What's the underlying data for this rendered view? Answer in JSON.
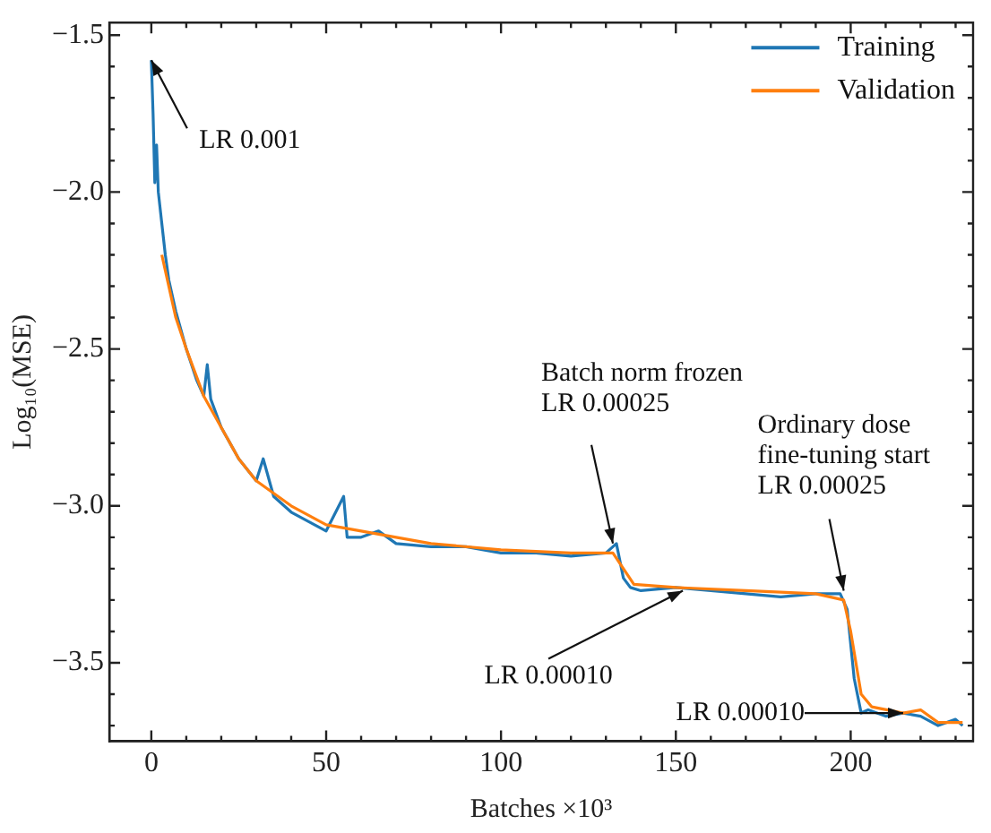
{
  "chart_data": {
    "type": "line",
    "xlabel": "Batches ×10³",
    "ylabel": "Log₁₀(MSE)",
    "xlim": [
      -12,
      235
    ],
    "ylim": [
      -3.75,
      -1.46
    ],
    "xticks": [
      0,
      {
        "value": 10,
        "label": null
      },
      {
        "value": 20,
        "label": null
      },
      {
        "value": 30,
        "label": null
      },
      {
        "value": 40,
        "label": null
      },
      50,
      {
        "value": 60,
        "label": null
      },
      {
        "value": 70,
        "label": null
      },
      {
        "value": 80,
        "label": null
      },
      {
        "value": 90,
        "label": null
      },
      100,
      {
        "value": 110,
        "label": null
      },
      {
        "value": 120,
        "label": null
      },
      {
        "value": 130,
        "label": null
      },
      {
        "value": 140,
        "label": null
      },
      150,
      {
        "value": 160,
        "label": null
      },
      {
        "value": 170,
        "label": null
      },
      {
        "value": 180,
        "label": null
      },
      {
        "value": 190,
        "label": null
      },
      200,
      {
        "value": 210,
        "label": null
      },
      {
        "value": 220,
        "label": null
      },
      {
        "value": 230,
        "label": null
      }
    ],
    "yticks": [
      {
        "value": -3.7,
        "label": null
      },
      {
        "value": -3.6,
        "label": null
      },
      {
        "value": -3.5,
        "label": "−3.5"
      },
      {
        "value": -3.4,
        "label": null
      },
      {
        "value": -3.3,
        "label": null
      },
      {
        "value": -3.2,
        "label": null
      },
      {
        "value": -3.1,
        "label": null
      },
      {
        "value": -3.0,
        "label": "−3.0"
      },
      {
        "value": -2.9,
        "label": null
      },
      {
        "value": -2.8,
        "label": null
      },
      {
        "value": -2.7,
        "label": null
      },
      {
        "value": -2.6,
        "label": null
      },
      {
        "value": -2.5,
        "label": "−2.5"
      },
      {
        "value": -2.4,
        "label": null
      },
      {
        "value": -2.3,
        "label": null
      },
      {
        "value": -2.2,
        "label": null
      },
      {
        "value": -2.1,
        "label": null
      },
      {
        "value": -2.0,
        "label": "−2.0"
      },
      {
        "value": -1.9,
        "label": null
      },
      {
        "value": -1.8,
        "label": null
      },
      {
        "value": -1.7,
        "label": null
      },
      {
        "value": -1.6,
        "label": null
      },
      {
        "value": -1.5,
        "label": "−1.5"
      }
    ],
    "grid": false,
    "legend": "top right",
    "marker": "none",
    "line_style": "solid",
    "series": [
      {
        "name": "Training",
        "color": "#1f77b4",
        "x": [
          0,
          0.5,
          1,
          1.5,
          2,
          3,
          4,
          5,
          7,
          10,
          13,
          15,
          16,
          17,
          20,
          25,
          30,
          32,
          35,
          40,
          45,
          50,
          55,
          56,
          60,
          65,
          70,
          80,
          90,
          100,
          110,
          120,
          130,
          133,
          135,
          137,
          140,
          150,
          160,
          170,
          180,
          190,
          197,
          199,
          201,
          203,
          205,
          210,
          215,
          220,
          225,
          230,
          232
        ],
        "values": [
          -1.58,
          -1.75,
          -1.97,
          -1.85,
          -2.0,
          -2.1,
          -2.2,
          -2.28,
          -2.38,
          -2.5,
          -2.6,
          -2.65,
          -2.55,
          -2.66,
          -2.75,
          -2.85,
          -2.92,
          -2.85,
          -2.97,
          -3.02,
          -3.05,
          -3.08,
          -2.97,
          -3.1,
          -3.1,
          -3.08,
          -3.12,
          -3.13,
          -3.13,
          -3.15,
          -3.15,
          -3.16,
          -3.15,
          -3.12,
          -3.23,
          -3.26,
          -3.27,
          -3.26,
          -3.27,
          -3.28,
          -3.29,
          -3.28,
          -3.28,
          -3.33,
          -3.55,
          -3.66,
          -3.65,
          -3.67,
          -3.66,
          -3.67,
          -3.7,
          -3.68,
          -3.7
        ]
      },
      {
        "name": "Validation",
        "color": "#ff7f0e",
        "x": [
          3,
          5,
          7,
          10,
          15,
          20,
          25,
          30,
          40,
          50,
          60,
          70,
          80,
          100,
          120,
          132,
          135,
          138,
          150,
          170,
          190,
          198,
          200,
          203,
          206,
          215,
          220,
          225,
          232
        ],
        "values": [
          -2.2,
          -2.3,
          -2.4,
          -2.5,
          -2.65,
          -2.75,
          -2.85,
          -2.92,
          -3.0,
          -3.06,
          -3.08,
          -3.1,
          -3.12,
          -3.14,
          -3.15,
          -3.15,
          -3.2,
          -3.25,
          -3.26,
          -3.27,
          -3.28,
          -3.3,
          -3.4,
          -3.6,
          -3.64,
          -3.66,
          -3.65,
          -3.69,
          -3.69
        ]
      }
    ],
    "annotations": [
      {
        "text": "LR 0.001",
        "x": 0,
        "y": -1.58
      },
      {
        "text": "Batch norm frozen\nLR 0.00025",
        "x": 132,
        "y": -3.12
      },
      {
        "text": "LR 0.00010",
        "x": 152,
        "y": -3.27
      },
      {
        "text": "Ordinary dose\nfine-tuning start\nLR 0.00025",
        "x": 198,
        "y": -3.27
      },
      {
        "text": "LR 0.00010",
        "x": 215,
        "y": -3.66
      }
    ]
  }
}
